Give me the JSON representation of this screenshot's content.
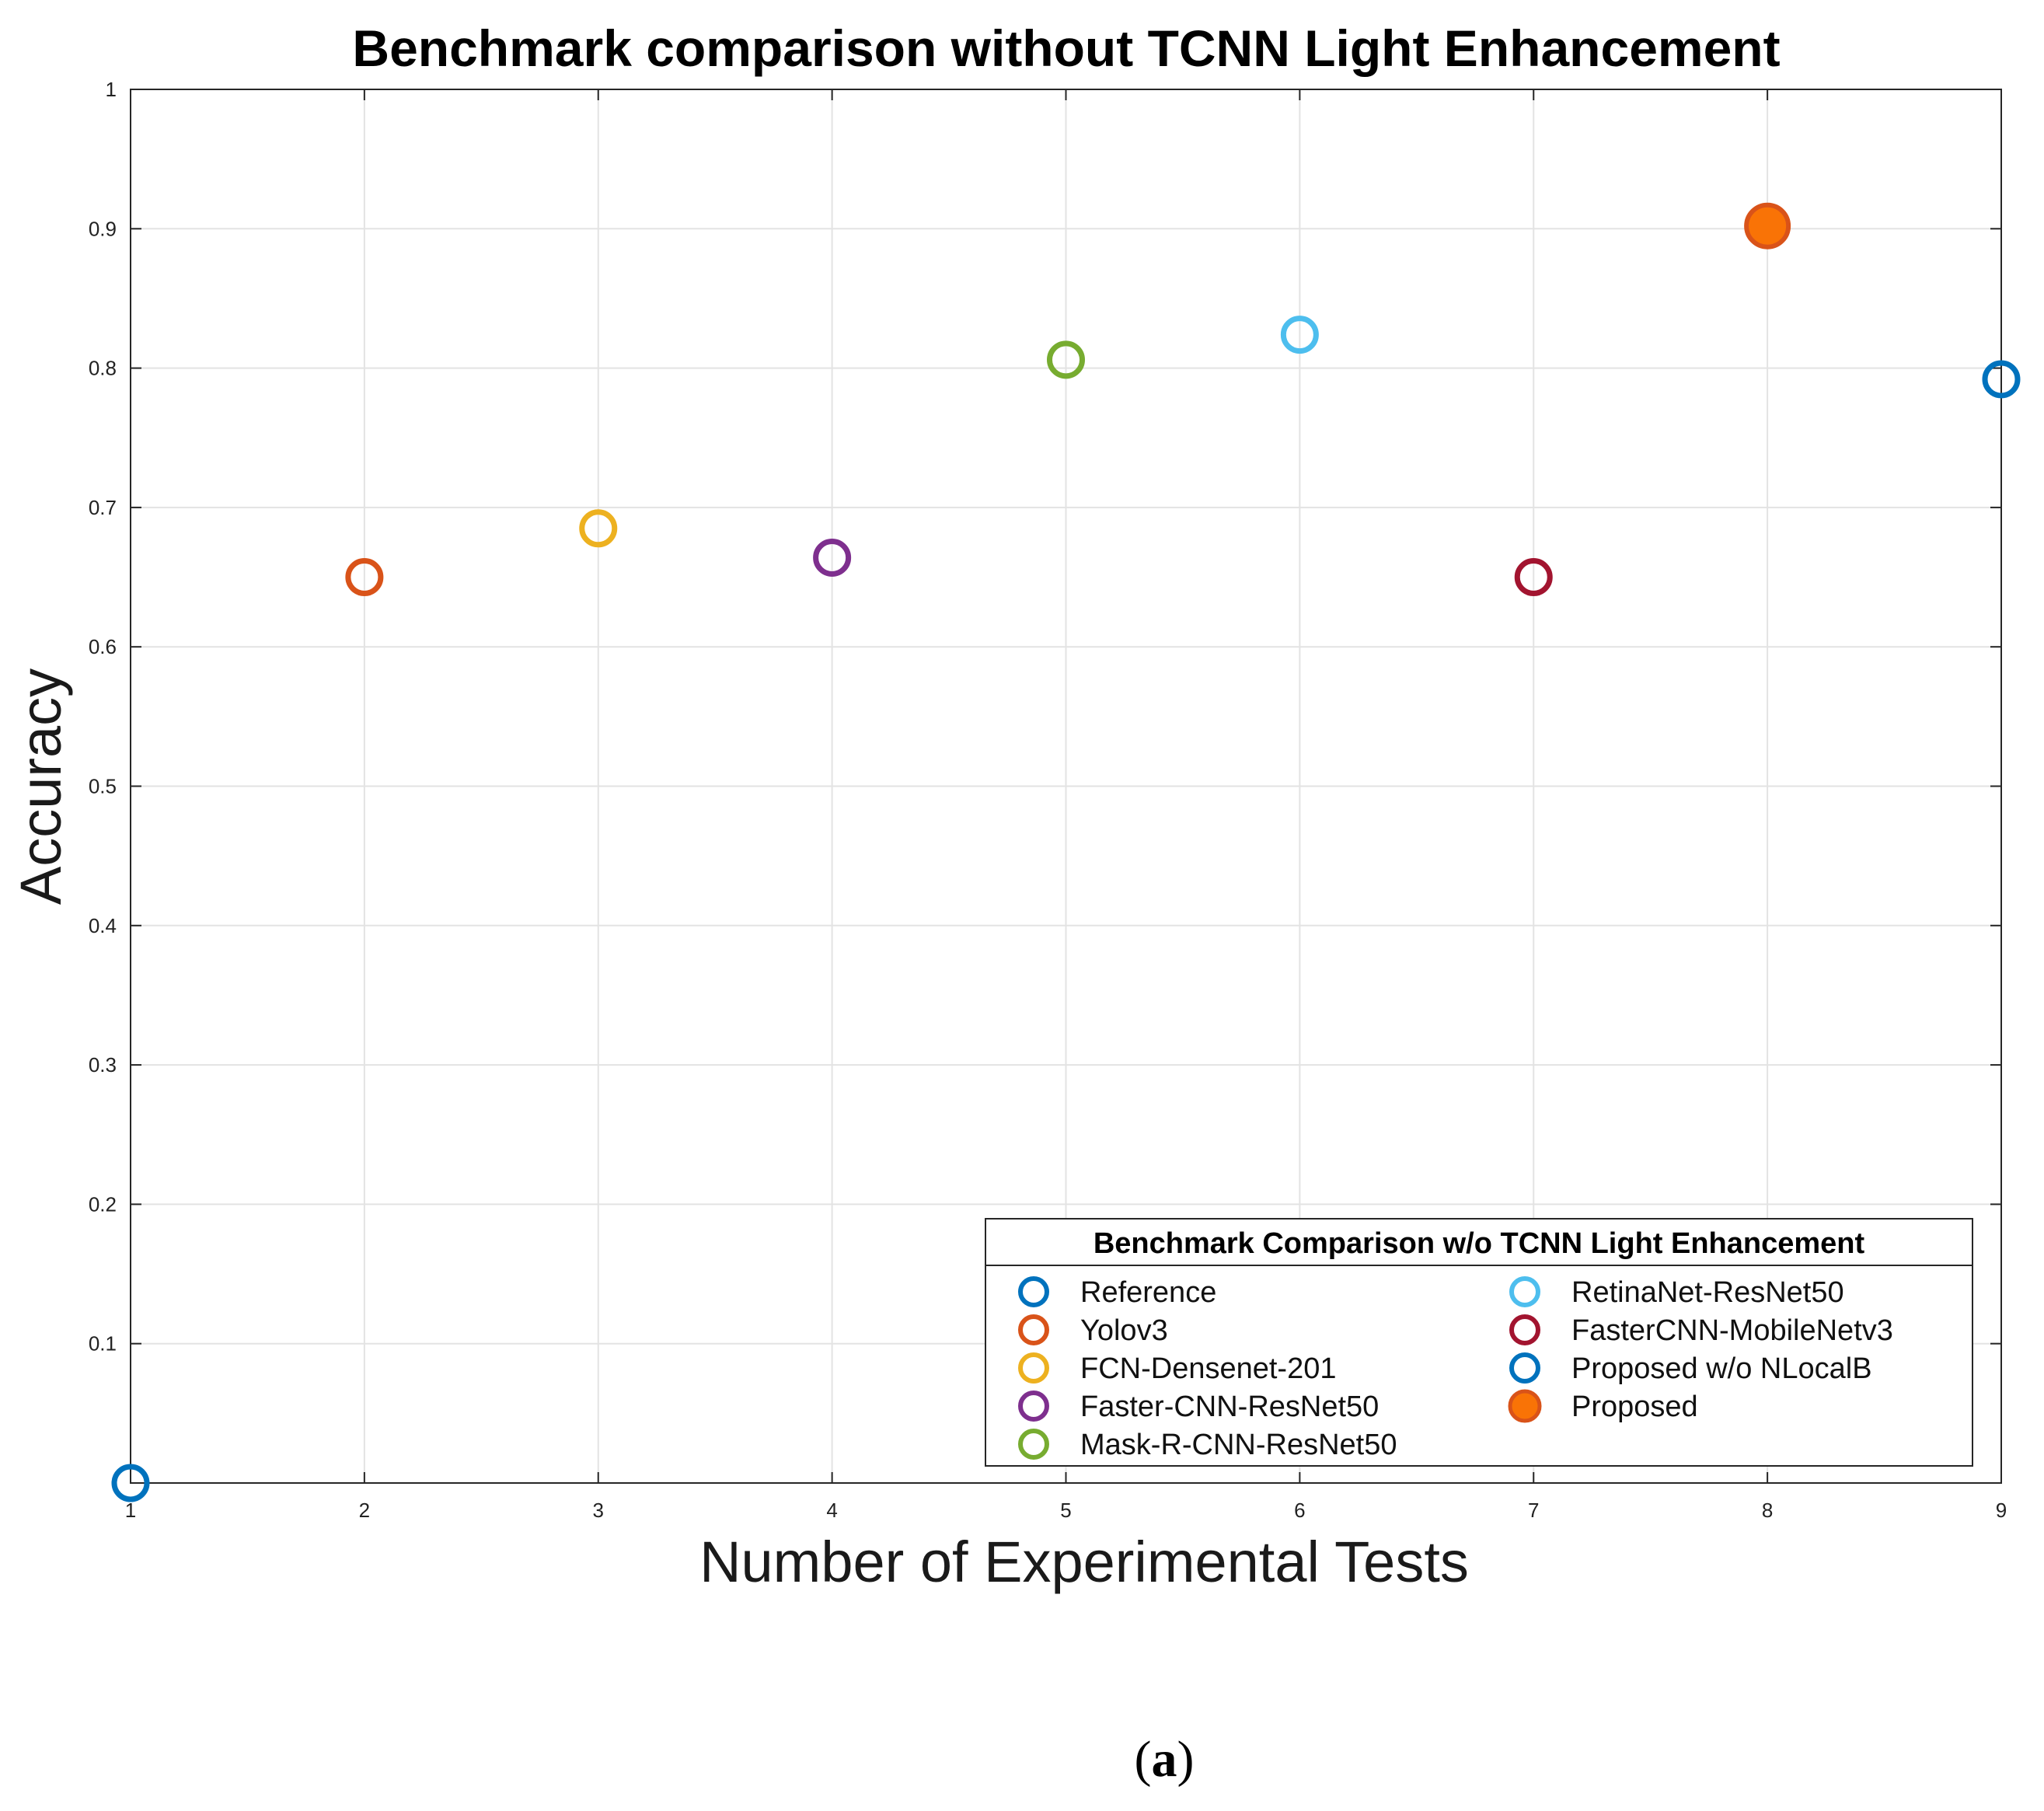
{
  "chart_data": {
    "type": "scatter",
    "title": "Benchmark comparison without TCNN Light Enhancement",
    "xlabel": "Number of Experimental Tests",
    "ylabel": "Accuracy",
    "xlim": [
      1,
      9
    ],
    "ylim": [
      0,
      1
    ],
    "xticks": [
      "1",
      "2",
      "3",
      "4",
      "5",
      "6",
      "7",
      "8",
      "9"
    ],
    "yticks": [
      "0.1",
      "0.2",
      "0.3",
      "0.4",
      "0.5",
      "0.6",
      "0.7",
      "0.8",
      "0.9",
      "1"
    ],
    "grid": true,
    "legend_title": "Benchmark Comparison w/o TCNN Light Enhancement",
    "legend_position": "bottom-right",
    "series": [
      {
        "name": "Reference",
        "x": 1,
        "y": 0.0,
        "color": "#0072BD",
        "filled": false
      },
      {
        "name": "Yolov3",
        "x": 2,
        "y": 0.65,
        "color": "#D95319",
        "filled": false
      },
      {
        "name": "FCN-Densenet-201",
        "x": 3,
        "y": 0.685,
        "color": "#EDB120",
        "filled": false
      },
      {
        "name": "Faster-CNN-ResNet50",
        "x": 4,
        "y": 0.664,
        "color": "#7E2F8E",
        "filled": false
      },
      {
        "name": "Mask-R-CNN-ResNet50",
        "x": 5,
        "y": 0.806,
        "color": "#77AC30",
        "filled": false
      },
      {
        "name": "RetinaNet-ResNet50",
        "x": 6,
        "y": 0.824,
        "color": "#4DBEEE",
        "filled": false
      },
      {
        "name": "FasterCNN-MobileNetv3",
        "x": 7,
        "y": 0.65,
        "color": "#A2142F",
        "filled": false
      },
      {
        "name": "Proposed w/o NLocalB",
        "x": 9,
        "y": 0.792,
        "color": "#0072BD",
        "filled": false
      },
      {
        "name": "Proposed",
        "x": 8,
        "y": 0.902,
        "color": "#F97306",
        "filled": true
      }
    ]
  },
  "caption": {
    "open": "(",
    "letter": "a",
    "close": ")"
  }
}
